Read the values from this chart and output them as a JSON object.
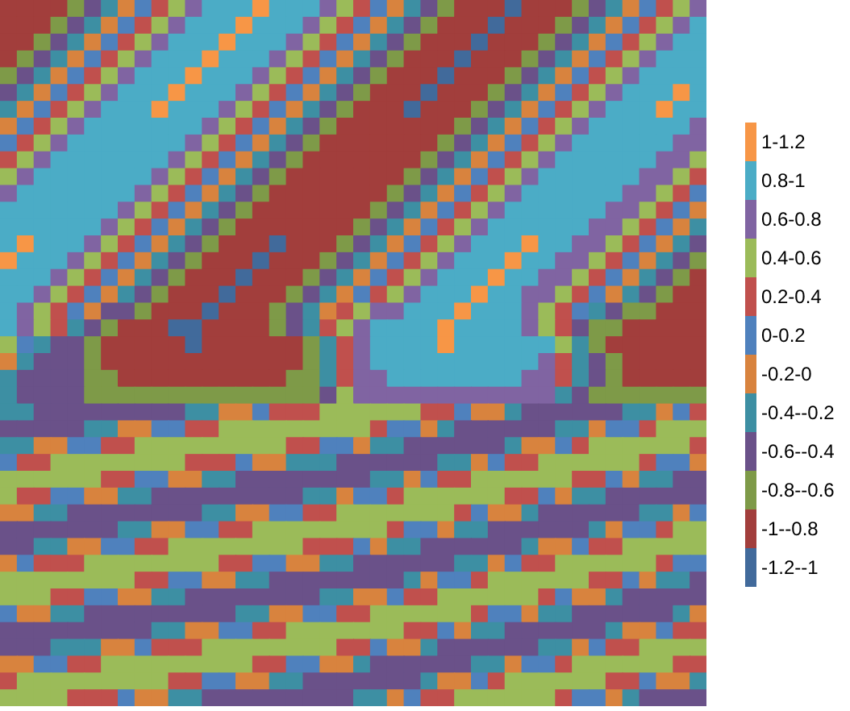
{
  "chart_data": {
    "type": "heatmap",
    "categories": [
      null,
      null,
      null,
      null,
      null,
      null,
      null,
      null,
      null,
      null,
      null,
      null,
      null,
      null,
      null,
      null,
      null,
      null,
      null,
      null,
      null,
      null,
      null,
      null,
      null,
      null,
      null,
      null,
      null,
      null,
      null,
      null,
      null,
      null,
      null,
      null,
      null,
      null,
      null,
      null,
      null,
      null
    ],
    "y_categories": [
      null,
      null,
      null,
      null,
      null,
      null,
      null,
      null,
      null,
      null,
      null,
      null,
      null,
      null,
      null,
      null,
      null,
      null,
      null,
      null,
      null,
      null,
      null,
      null,
      null,
      null,
      null,
      null,
      null,
      null,
      null,
      null,
      null,
      null,
      null,
      null,
      null,
      null,
      null,
      null,
      null,
      null
    ],
    "cells": [
      [
        -0.9,
        -0.9,
        -0.9,
        -0.9,
        -0.7,
        -0.5,
        -0.3,
        -0.1,
        0.1,
        0.3,
        0.5,
        0.7,
        0.9,
        0.9,
        0.9,
        1.1,
        0.9,
        0.9,
        0.9,
        0.7,
        0.5,
        0.3,
        0.1,
        -0.1,
        -0.3,
        -0.5,
        -0.7,
        -0.9,
        -0.9,
        -0.9,
        -1.1,
        -0.9,
        -0.9,
        -0.9,
        -0.7,
        -0.5,
        -0.3,
        -0.1,
        0.1,
        0.3,
        0.5,
        0.7
      ],
      [
        -0.9,
        -0.9,
        -0.9,
        -0.7,
        -0.5,
        -0.3,
        -0.1,
        0.1,
        0.3,
        0.5,
        0.7,
        0.9,
        0.9,
        0.9,
        1.1,
        0.9,
        0.9,
        0.9,
        0.7,
        0.5,
        0.3,
        0.1,
        -0.1,
        -0.3,
        -0.5,
        -0.7,
        -0.9,
        -0.9,
        -0.9,
        -1.1,
        -0.9,
        -0.9,
        -0.9,
        -0.7,
        -0.5,
        -0.3,
        -0.1,
        0.1,
        0.3,
        0.5,
        0.7,
        0.9
      ],
      [
        -0.9,
        -0.9,
        -0.7,
        -0.5,
        -0.3,
        -0.1,
        0.1,
        0.3,
        0.5,
        0.7,
        0.9,
        0.9,
        0.9,
        1.1,
        0.9,
        0.9,
        0.9,
        0.7,
        0.5,
        0.3,
        0.1,
        -0.1,
        -0.3,
        -0.5,
        -0.7,
        -0.9,
        -0.9,
        -0.9,
        -1.1,
        -0.9,
        -0.9,
        -0.9,
        -0.7,
        -0.5,
        -0.3,
        -0.1,
        0.1,
        0.3,
        0.5,
        0.7,
        0.9,
        0.9
      ],
      [
        -0.9,
        -0.7,
        -0.5,
        -0.3,
        -0.1,
        0.1,
        0.3,
        0.5,
        0.7,
        0.9,
        0.9,
        0.9,
        1.1,
        0.9,
        0.9,
        0.9,
        0.7,
        0.5,
        0.3,
        0.1,
        -0.1,
        -0.3,
        -0.5,
        -0.7,
        -0.9,
        -0.9,
        -0.9,
        -1.1,
        -0.9,
        -0.9,
        -0.9,
        -0.7,
        -0.5,
        -0.3,
        -0.1,
        0.1,
        0.3,
        0.5,
        0.7,
        0.9,
        0.9,
        0.9
      ],
      [
        -0.7,
        -0.5,
        -0.3,
        -0.1,
        0.1,
        0.3,
        0.5,
        0.7,
        0.9,
        0.9,
        0.9,
        1.1,
        0.9,
        0.9,
        0.9,
        0.7,
        0.5,
        0.3,
        0.1,
        -0.1,
        -0.3,
        -0.5,
        -0.7,
        -0.9,
        -0.9,
        -0.9,
        -1.1,
        -0.9,
        -0.9,
        -0.9,
        -0.7,
        -0.5,
        -0.3,
        -0.1,
        0.1,
        0.3,
        0.5,
        0.7,
        0.9,
        0.9,
        0.9,
        0.9
      ],
      [
        -0.5,
        -0.3,
        -0.1,
        0.1,
        0.3,
        0.5,
        0.7,
        0.9,
        0.9,
        0.9,
        1.1,
        0.9,
        0.9,
        0.9,
        0.7,
        0.5,
        0.3,
        0.1,
        -0.1,
        -0.3,
        -0.5,
        -0.7,
        -0.9,
        -0.9,
        -0.9,
        -1.1,
        -0.9,
        -0.9,
        -0.9,
        -0.7,
        -0.5,
        -0.3,
        -0.1,
        0.1,
        0.3,
        0.5,
        0.7,
        0.9,
        0.9,
        0.9,
        1.1,
        0.9
      ],
      [
        -0.3,
        -0.1,
        0.1,
        0.3,
        0.5,
        0.7,
        0.9,
        0.9,
        0.9,
        1.1,
        0.9,
        0.9,
        0.9,
        0.7,
        0.5,
        0.3,
        0.1,
        -0.1,
        -0.3,
        -0.5,
        -0.7,
        -0.9,
        -0.9,
        -0.9,
        -1.1,
        -0.9,
        -0.9,
        -0.9,
        -0.7,
        -0.5,
        -0.3,
        -0.1,
        0.1,
        0.3,
        0.5,
        0.7,
        0.9,
        0.9,
        0.9,
        1.1,
        0.9,
        0.9
      ],
      [
        -0.1,
        0.1,
        0.3,
        0.5,
        0.7,
        0.9,
        0.9,
        0.9,
        0.9,
        0.9,
        0.9,
        0.9,
        0.7,
        0.5,
        0.3,
        0.1,
        -0.1,
        -0.3,
        -0.5,
        -0.7,
        -0.9,
        -0.9,
        -0.9,
        -0.9,
        -0.9,
        -0.9,
        -0.9,
        -0.7,
        -0.5,
        -0.3,
        -0.1,
        0.1,
        0.3,
        0.5,
        0.7,
        0.9,
        0.9,
        0.9,
        0.9,
        0.9,
        0.9,
        0.7
      ],
      [
        0.1,
        0.3,
        0.5,
        0.7,
        0.9,
        0.9,
        0.9,
        0.9,
        0.9,
        0.9,
        0.9,
        0.7,
        0.5,
        0.3,
        0.1,
        -0.1,
        -0.3,
        -0.5,
        -0.7,
        -0.9,
        -0.9,
        -0.9,
        -0.9,
        -0.9,
        -0.9,
        -0.9,
        -0.7,
        -0.5,
        -0.3,
        -0.1,
        0.1,
        0.3,
        0.5,
        0.7,
        0.9,
        0.9,
        0.9,
        0.9,
        0.9,
        0.9,
        0.7,
        0.7
      ],
      [
        0.3,
        0.5,
        0.7,
        0.9,
        0.9,
        0.9,
        0.9,
        0.9,
        0.9,
        0.9,
        0.7,
        0.5,
        0.3,
        0.1,
        -0.1,
        -0.3,
        -0.5,
        -0.7,
        -0.9,
        -0.9,
        -0.9,
        -0.9,
        -0.9,
        -0.9,
        -0.9,
        -0.7,
        -0.5,
        -0.3,
        -0.1,
        0.1,
        0.3,
        0.5,
        0.7,
        0.9,
        0.9,
        0.9,
        0.9,
        0.9,
        0.9,
        0.7,
        0.7,
        0.5
      ],
      [
        0.5,
        0.7,
        0.9,
        0.9,
        0.9,
        0.9,
        0.9,
        0.9,
        0.9,
        0.7,
        0.5,
        0.3,
        0.1,
        -0.1,
        -0.3,
        -0.5,
        -0.7,
        -0.9,
        -0.9,
        -0.9,
        -0.9,
        -0.9,
        -0.9,
        -0.9,
        -0.7,
        -0.5,
        -0.3,
        -0.1,
        0.1,
        0.3,
        0.5,
        0.7,
        0.9,
        0.9,
        0.9,
        0.9,
        0.9,
        0.9,
        0.7,
        0.7,
        0.5,
        0.3
      ],
      [
        0.7,
        0.9,
        0.9,
        0.9,
        0.9,
        0.9,
        0.9,
        0.9,
        0.7,
        0.5,
        0.3,
        0.1,
        -0.1,
        -0.3,
        -0.5,
        -0.7,
        -0.9,
        -0.9,
        -0.9,
        -0.9,
        -0.9,
        -0.9,
        -0.9,
        -0.7,
        -0.5,
        -0.3,
        -0.1,
        0.1,
        0.3,
        0.5,
        0.7,
        0.9,
        0.9,
        0.9,
        0.9,
        0.9,
        0.9,
        0.7,
        0.7,
        0.5,
        0.3,
        0.1
      ],
      [
        0.9,
        0.9,
        0.9,
        0.9,
        0.9,
        0.9,
        0.9,
        0.7,
        0.5,
        0.3,
        0.1,
        -0.1,
        -0.3,
        -0.5,
        -0.7,
        -0.9,
        -0.9,
        -0.9,
        -0.9,
        -0.9,
        -0.9,
        -0.9,
        -0.7,
        -0.5,
        -0.3,
        -0.1,
        0.1,
        0.3,
        0.5,
        0.7,
        0.9,
        0.9,
        0.9,
        0.9,
        0.9,
        0.9,
        0.7,
        0.7,
        0.5,
        0.3,
        0.1,
        -0.1
      ],
      [
        0.9,
        0.9,
        0.9,
        0.9,
        0.9,
        0.9,
        0.7,
        0.5,
        0.3,
        0.1,
        -0.1,
        -0.3,
        -0.5,
        -0.7,
        -0.9,
        -0.9,
        -0.9,
        -0.9,
        -0.9,
        -0.9,
        -0.9,
        -0.7,
        -0.5,
        -0.3,
        -0.1,
        0.1,
        0.3,
        0.5,
        0.7,
        0.9,
        0.9,
        0.9,
        0.9,
        0.9,
        0.9,
        0.7,
        0.7,
        0.5,
        0.3,
        0.1,
        -0.1,
        -0.3
      ],
      [
        0.9,
        1.1,
        0.9,
        0.9,
        0.9,
        0.7,
        0.5,
        0.3,
        0.1,
        -0.1,
        -0.3,
        -0.5,
        -0.7,
        -0.9,
        -0.9,
        -0.9,
        -1.1,
        -0.9,
        -0.9,
        -0.9,
        -0.7,
        -0.5,
        -0.3,
        -0.1,
        0.1,
        0.3,
        0.5,
        0.7,
        0.9,
        0.9,
        0.9,
        1.1,
        0.9,
        0.9,
        0.7,
        0.7,
        0.5,
        0.3,
        0.1,
        -0.1,
        -0.3,
        -0.5
      ],
      [
        1.1,
        0.9,
        0.9,
        0.9,
        0.7,
        0.5,
        0.3,
        0.1,
        -0.1,
        -0.3,
        -0.5,
        -0.7,
        -0.9,
        -0.9,
        -0.9,
        -1.1,
        -0.9,
        -0.9,
        -0.9,
        -0.7,
        -0.5,
        -0.3,
        -0.1,
        0.1,
        0.3,
        0.5,
        0.7,
        0.9,
        0.9,
        0.9,
        1.1,
        0.9,
        0.9,
        0.7,
        0.7,
        0.5,
        0.3,
        0.1,
        -0.1,
        -0.3,
        -0.5,
        -0.7
      ],
      [
        0.9,
        0.9,
        0.9,
        0.7,
        0.5,
        0.3,
        0.1,
        -0.1,
        -0.3,
        -0.5,
        -0.7,
        -0.9,
        -0.9,
        -0.9,
        -1.1,
        -0.9,
        -0.9,
        -0.9,
        -0.7,
        -0.5,
        -0.3,
        -0.1,
        0.1,
        0.3,
        0.5,
        0.7,
        0.9,
        0.9,
        0.9,
        1.1,
        0.9,
        0.9,
        0.7,
        0.7,
        0.5,
        0.3,
        0.1,
        -0.1,
        -0.3,
        -0.5,
        -0.7,
        -0.9
      ],
      [
        0.9,
        0.9,
        0.7,
        0.5,
        0.3,
        0.1,
        -0.1,
        -0.3,
        -0.5,
        -0.7,
        -0.9,
        -0.9,
        -0.9,
        -1.1,
        -0.9,
        -0.9,
        -0.9,
        -0.7,
        -0.5,
        -0.3,
        -0.1,
        0.1,
        0.3,
        0.5,
        0.7,
        0.9,
        0.9,
        0.9,
        1.1,
        0.9,
        0.9,
        0.7,
        0.7,
        0.5,
        0.3,
        0.1,
        -0.1,
        -0.3,
        -0.5,
        -0.7,
        -0.9,
        -0.9
      ],
      [
        0.9,
        0.7,
        0.5,
        0.3,
        0.1,
        -0.1,
        -0.5,
        -0.5,
        -0.7,
        -0.9,
        -0.9,
        -0.9,
        -1.1,
        -0.9,
        -0.9,
        -0.9,
        -0.7,
        -0.5,
        -0.3,
        -0.1,
        0.3,
        0.5,
        0.7,
        0.7,
        0.9,
        0.9,
        0.9,
        1.1,
        0.9,
        0.9,
        0.9,
        0.7,
        0.5,
        0.3,
        0.1,
        -0.3,
        -0.5,
        -0.7,
        -0.7,
        -0.9,
        -0.9,
        -0.9
      ],
      [
        0.9,
        0.7,
        0.5,
        0.3,
        -0.3,
        -0.5,
        -0.7,
        -0.9,
        -0.9,
        -0.9,
        -1.1,
        -1.1,
        -0.9,
        -0.9,
        -0.9,
        -0.9,
        -0.7,
        -0.5,
        -0.3,
        0.3,
        0.5,
        0.7,
        0.9,
        0.9,
        0.9,
        0.9,
        1.1,
        0.9,
        0.9,
        0.9,
        0.9,
        0.7,
        0.5,
        0.3,
        -0.5,
        -0.7,
        -0.7,
        -0.9,
        -0.9,
        -0.9,
        -0.9,
        -0.9
      ],
      [
        0.5,
        0.1,
        -0.3,
        -0.5,
        -0.5,
        -0.7,
        -0.9,
        -0.9,
        -0.9,
        -0.9,
        -0.9,
        -1.1,
        -0.9,
        -0.9,
        -0.9,
        -0.9,
        -0.9,
        -0.9,
        -0.7,
        -0.3,
        0.3,
        0.7,
        0.9,
        0.9,
        0.9,
        0.9,
        1.1,
        0.9,
        0.9,
        0.9,
        0.9,
        0.9,
        0.9,
        0.5,
        -0.3,
        -0.7,
        -0.9,
        -0.9,
        -0.9,
        -0.9,
        -0.9,
        -0.9
      ],
      [
        -0.1,
        -0.3,
        -0.5,
        -0.5,
        -0.5,
        -0.7,
        -0.9,
        -0.9,
        -0.9,
        -0.9,
        -0.9,
        -0.9,
        -0.9,
        -0.9,
        -0.9,
        -0.9,
        -0.9,
        -0.9,
        -0.7,
        -0.3,
        0.3,
        0.7,
        0.9,
        0.9,
        0.9,
        0.9,
        0.9,
        0.9,
        0.9,
        0.9,
        0.9,
        0.9,
        0.7,
        0.3,
        -0.3,
        -0.5,
        -0.7,
        -0.9,
        -0.9,
        -0.9,
        -0.9,
        -0.9
      ],
      [
        -0.3,
        -0.5,
        -0.5,
        -0.5,
        -0.5,
        -0.7,
        -0.7,
        -0.9,
        -0.9,
        -0.9,
        -0.9,
        -0.9,
        -0.9,
        -0.9,
        -0.9,
        -0.9,
        -0.9,
        -0.7,
        -0.7,
        -0.3,
        0.3,
        0.7,
        0.7,
        0.9,
        0.9,
        0.9,
        0.9,
        0.9,
        0.9,
        0.9,
        0.9,
        0.7,
        0.7,
        0.3,
        -0.3,
        -0.5,
        -0.7,
        -0.9,
        -0.9,
        -0.9,
        -0.9,
        -0.9
      ],
      [
        -0.3,
        -0.5,
        -0.5,
        -0.5,
        -0.5,
        -0.7,
        -0.7,
        -0.7,
        -0.7,
        -0.7,
        -0.7,
        -0.7,
        -0.7,
        -0.7,
        -0.7,
        -0.7,
        -0.7,
        -0.7,
        -0.7,
        -0.5,
        0.5,
        0.7,
        0.7,
        0.7,
        0.7,
        0.7,
        0.7,
        0.7,
        0.7,
        0.7,
        0.7,
        0.7,
        0.7,
        -0.3,
        -0.5,
        -0.7,
        -0.7,
        -0.7,
        -0.7,
        -0.7,
        -0.7,
        -0.7
      ],
      [
        -0.3,
        -0.3,
        -0.5,
        -0.5,
        -0.5,
        -0.5,
        -0.5,
        -0.5,
        -0.5,
        -0.5,
        -0.5,
        -0.3,
        -0.3,
        -0.1,
        -0.1,
        0.1,
        0.3,
        0.3,
        0.3,
        0.5,
        0.5,
        0.5,
        0.5,
        0.5,
        0.5,
        0.3,
        0.3,
        0.1,
        -0.1,
        -0.1,
        -0.3,
        -0.5,
        -0.5,
        -0.5,
        -0.5,
        -0.5,
        -0.5,
        -0.3,
        -0.3,
        -0.1,
        0.1,
        0.3
      ],
      [
        -0.5,
        -0.5,
        -0.5,
        -0.5,
        -0.5,
        -0.3,
        -0.3,
        -0.1,
        -0.1,
        0.1,
        0.1,
        0.3,
        0.3,
        0.5,
        0.5,
        0.5,
        0.5,
        0.5,
        0.5,
        0.5,
        0.5,
        0.5,
        0.3,
        0.1,
        0.1,
        -0.1,
        -0.3,
        -0.5,
        -0.5,
        -0.5,
        -0.5,
        -0.5,
        -0.5,
        -0.3,
        -0.3,
        -0.1,
        0.1,
        0.1,
        0.3,
        0.5,
        0.5,
        0.5
      ],
      [
        -0.3,
        -0.3,
        -0.1,
        -0.1,
        0.1,
        0.1,
        0.3,
        0.3,
        0.5,
        0.5,
        0.5,
        0.5,
        0.5,
        0.5,
        0.5,
        0.5,
        0.5,
        0.3,
        0.3,
        0.1,
        0.1,
        -0.1,
        -0.3,
        -0.3,
        -0.5,
        -0.5,
        -0.5,
        -0.5,
        -0.5,
        -0.5,
        -0.3,
        -0.1,
        -0.1,
        0.1,
        0.3,
        0.5,
        0.5,
        0.5,
        0.5,
        0.5,
        0.5,
        0.3
      ],
      [
        0.1,
        0.3,
        0.3,
        0.5,
        0.5,
        0.5,
        0.5,
        0.5,
        0.5,
        0.5,
        0.5,
        0.3,
        0.3,
        0.3,
        0.1,
        -0.1,
        -0.1,
        -0.3,
        -0.3,
        -0.3,
        -0.5,
        -0.5,
        -0.5,
        -0.5,
        -0.5,
        -0.5,
        -0.3,
        -0.3,
        -0.1,
        0.1,
        0.3,
        0.3,
        0.5,
        0.5,
        0.5,
        0.5,
        0.5,
        0.5,
        0.3,
        0.1,
        0.1,
        -0.1
      ],
      [
        0.5,
        0.5,
        0.5,
        0.5,
        0.5,
        0.5,
        0.3,
        0.3,
        0.1,
        0.1,
        -0.1,
        -0.1,
        -0.3,
        -0.3,
        -0.5,
        -0.5,
        -0.5,
        -0.5,
        -0.5,
        -0.5,
        -0.5,
        -0.5,
        -0.3,
        -0.3,
        -0.1,
        0.1,
        0.3,
        0.3,
        0.5,
        0.5,
        0.5,
        0.5,
        0.5,
        0.5,
        0.3,
        0.3,
        0.1,
        -0.1,
        -0.3,
        -0.3,
        -0.5,
        -0.5
      ],
      [
        0.5,
        0.3,
        0.3,
        0.1,
        0.1,
        -0.1,
        -0.1,
        -0.3,
        -0.3,
        -0.5,
        -0.5,
        -0.5,
        -0.5,
        -0.5,
        -0.5,
        -0.5,
        -0.5,
        -0.5,
        -0.3,
        -0.3,
        -0.1,
        0.1,
        0.1,
        0.3,
        0.5,
        0.5,
        0.5,
        0.5,
        0.5,
        0.5,
        0.3,
        0.3,
        0.1,
        -0.1,
        -0.3,
        -0.3,
        -0.5,
        -0.5,
        -0.5,
        -0.5,
        -0.5,
        -0.5
      ],
      [
        -0.1,
        -0.1,
        -0.3,
        -0.3,
        -0.5,
        -0.5,
        -0.5,
        -0.5,
        -0.5,
        -0.5,
        -0.5,
        -0.5,
        -0.3,
        -0.3,
        -0.1,
        -0.1,
        0.1,
        0.1,
        0.3,
        0.3,
        0.5,
        0.5,
        0.5,
        0.5,
        0.5,
        0.5,
        0.5,
        0.3,
        0.1,
        -0.1,
        -0.1,
        -0.3,
        -0.5,
        -0.5,
        -0.5,
        -0.5,
        -0.5,
        -0.5,
        -0.3,
        -0.3,
        -0.1,
        0.1
      ],
      [
        -0.5,
        -0.5,
        -0.5,
        -0.5,
        -0.5,
        -0.5,
        -0.5,
        -0.3,
        -0.3,
        -0.1,
        -0.1,
        0.1,
        0.1,
        0.3,
        0.3,
        0.5,
        0.5,
        0.5,
        0.5,
        0.5,
        0.5,
        0.5,
        0.5,
        0.3,
        0.1,
        0.1,
        -0.1,
        -0.3,
        -0.3,
        -0.5,
        -0.5,
        -0.5,
        -0.5,
        -0.5,
        -0.5,
        -0.3,
        -0.1,
        0.1,
        0.1,
        0.3,
        0.5,
        0.5
      ],
      [
        -0.5,
        -0.5,
        -0.3,
        -0.3,
        -0.1,
        -0.1,
        0.1,
        0.1,
        0.3,
        0.3,
        0.5,
        0.5,
        0.5,
        0.5,
        0.5,
        0.5,
        0.5,
        0.5,
        0.3,
        0.3,
        0.3,
        0.1,
        -0.1,
        -0.3,
        -0.3,
        -0.5,
        -0.5,
        -0.5,
        -0.5,
        -0.5,
        -0.5,
        -0.3,
        -0.1,
        -0.1,
        0.1,
        0.3,
        0.3,
        0.5,
        0.5,
        0.5,
        0.5,
        0.5
      ],
      [
        -0.1,
        0.1,
        0.3,
        0.3,
        0.3,
        0.5,
        0.5,
        0.5,
        0.5,
        0.5,
        0.5,
        0.5,
        0.5,
        0.3,
        0.3,
        0.1,
        0.1,
        -0.1,
        -0.1,
        -0.3,
        -0.3,
        -0.5,
        -0.5,
        -0.5,
        -0.5,
        -0.5,
        -0.5,
        -0.3,
        -0.3,
        -0.1,
        0.1,
        0.3,
        0.3,
        0.5,
        0.5,
        0.5,
        0.5,
        0.5,
        0.5,
        0.3,
        0.1,
        0.1
      ],
      [
        0.5,
        0.5,
        0.5,
        0.5,
        0.5,
        0.5,
        0.5,
        0.5,
        0.3,
        0.3,
        0.1,
        0.1,
        -0.1,
        -0.1,
        -0.3,
        -0.3,
        -0.5,
        -0.5,
        -0.5,
        -0.5,
        -0.5,
        -0.5,
        -0.5,
        -0.5,
        -0.3,
        -0.1,
        0.1,
        0.1,
        0.3,
        0.5,
        0.5,
        0.5,
        0.5,
        0.5,
        0.5,
        0.3,
        0.3,
        0.1,
        -0.1,
        -0.3,
        -0.3,
        -0.5
      ],
      [
        0.5,
        0.5,
        0.5,
        0.3,
        0.3,
        0.1,
        0.1,
        -0.1,
        -0.1,
        -0.3,
        -0.3,
        -0.5,
        -0.5,
        -0.5,
        -0.5,
        -0.5,
        -0.5,
        -0.5,
        -0.5,
        -0.3,
        -0.3,
        -0.1,
        -0.1,
        0.1,
        0.3,
        0.3,
        0.5,
        0.5,
        0.5,
        0.5,
        0.5,
        0.5,
        0.3,
        0.1,
        -0.1,
        -0.1,
        -0.3,
        -0.5,
        -0.5,
        -0.5,
        -0.5,
        -0.5
      ],
      [
        0.1,
        -0.1,
        -0.1,
        -0.3,
        -0.3,
        -0.5,
        -0.5,
        -0.5,
        -0.5,
        -0.5,
        -0.5,
        -0.5,
        -0.5,
        -0.5,
        -0.3,
        -0.3,
        -0.1,
        -0.1,
        0.1,
        0.1,
        0.3,
        0.3,
        0.5,
        0.5,
        0.5,
        0.5,
        0.5,
        0.5,
        0.3,
        0.1,
        0.1,
        -0.1,
        -0.3,
        -0.3,
        -0.5,
        -0.5,
        -0.5,
        -0.5,
        -0.5,
        -0.5,
        -0.3,
        -0.1
      ],
      [
        -0.5,
        -0.5,
        -0.5,
        -0.5,
        -0.5,
        -0.5,
        -0.5,
        -0.5,
        -0.5,
        -0.3,
        -0.3,
        -0.1,
        -0.1,
        0.1,
        0.1,
        0.3,
        0.3,
        0.5,
        0.5,
        0.5,
        0.5,
        0.5,
        0.5,
        0.5,
        0.3,
        0.3,
        0.1,
        -0.1,
        -0.3,
        -0.3,
        -0.5,
        -0.5,
        -0.5,
        -0.5,
        -0.5,
        -0.5,
        -0.3,
        -0.1,
        -0.1,
        0.1,
        0.3,
        0.3
      ],
      [
        -0.5,
        -0.5,
        -0.5,
        -0.3,
        -0.3,
        -0.3,
        -0.1,
        -0.1,
        0.1,
        0.3,
        0.3,
        0.3,
        0.5,
        0.5,
        0.5,
        0.5,
        0.5,
        0.5,
        0.5,
        0.5,
        0.3,
        0.3,
        0.1,
        -0.1,
        -0.1,
        -0.3,
        -0.5,
        -0.5,
        -0.5,
        -0.5,
        -0.5,
        -0.5,
        -0.3,
        -0.3,
        -0.1,
        0.1,
        0.3,
        0.3,
        0.5,
        0.5,
        0.5,
        0.5
      ],
      [
        -0.1,
        -0.1,
        0.1,
        0.1,
        0.3,
        0.3,
        0.5,
        0.5,
        0.5,
        0.5,
        0.5,
        0.5,
        0.5,
        0.5,
        0.5,
        0.3,
        0.3,
        0.1,
        0.1,
        -0.1,
        -0.1,
        -0.3,
        -0.5,
        -0.5,
        -0.5,
        -0.5,
        -0.5,
        -0.5,
        -0.3,
        -0.3,
        -0.1,
        0.1,
        0.1,
        0.3,
        0.5,
        0.5,
        0.5,
        0.5,
        0.5,
        0.5,
        0.3,
        0.3
      ],
      [
        0.3,
        0.5,
        0.5,
        0.5,
        0.5,
        0.5,
        0.5,
        0.5,
        0.5,
        0.5,
        0.3,
        0.3,
        0.1,
        0.1,
        -0.1,
        -0.1,
        -0.3,
        -0.3,
        -0.5,
        -0.5,
        -0.5,
        -0.5,
        -0.5,
        -0.5,
        -0.5,
        -0.3,
        -0.1,
        -0.1,
        0.1,
        0.3,
        0.5,
        0.5,
        0.5,
        0.5,
        0.5,
        0.5,
        0.3,
        0.3,
        0.1,
        -0.1,
        -0.1,
        -0.3
      ],
      [
        0.5,
        0.5,
        0.5,
        0.5,
        0.3,
        0.3,
        0.3,
        0.1,
        -0.1,
        -0.1,
        -0.3,
        -0.3,
        -0.5,
        -0.5,
        -0.5,
        -0.5,
        -0.5,
        -0.5,
        -0.5,
        -0.5,
        -0.5,
        -0.3,
        -0.3,
        -0.1,
        0.1,
        0.3,
        0.3,
        0.5,
        0.5,
        0.5,
        0.5,
        0.5,
        0.5,
        0.3,
        0.1,
        0.1,
        -0.1,
        -0.3,
        -0.5,
        -0.5,
        -0.5,
        -0.5
      ]
    ],
    "clim": [
      -1.2,
      1.2
    ],
    "colors": [
      "#416a9b",
      "#a23e3c",
      "#7e9a48",
      "#6a5189",
      "#3d8fa3",
      "#d8833e",
      "#4f81bd",
      "#c0504d",
      "#9bbb59",
      "#8064a2",
      "#4bacc6",
      "#f79646"
    ],
    "cticks": [
      {
        "value": 1.1,
        "label": "1-1.2"
      },
      {
        "value": 0.9,
        "label": "0.8-1"
      },
      {
        "value": 0.7,
        "label": "0.6-0.8"
      },
      {
        "value": 0.5,
        "label": "0.4-0.6"
      },
      {
        "value": 0.3,
        "label": "0.2-0.4"
      },
      {
        "value": 0.1,
        "label": "0-0.2"
      },
      {
        "value": -0.1,
        "label": "-0.2-0"
      },
      {
        "value": -0.3,
        "label": "-0.4--0.2"
      },
      {
        "value": -0.5,
        "label": "-0.6--0.4"
      },
      {
        "value": -0.7,
        "label": "-0.8--0.6"
      },
      {
        "value": -0.9,
        "label": "-1--0.8"
      },
      {
        "value": -1.1,
        "label": "-1.2--1"
      }
    ]
  }
}
